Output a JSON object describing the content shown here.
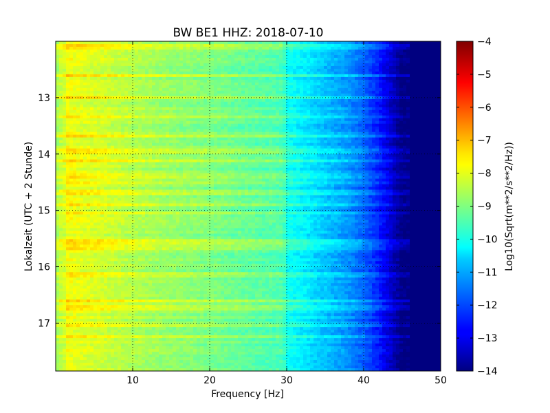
{
  "chart_data": {
    "type": "heatmap",
    "title": "BW BE1 HHZ: 2018-07-10",
    "xlabel": "Frequency [Hz]",
    "ylabel": "Lokalzeit (UTC + 2 Stunde)",
    "xlim": [
      0,
      50
    ],
    "ylim": [
      12.0,
      17.85
    ],
    "x_ticks": [
      10,
      20,
      30,
      40,
      50
    ],
    "y_ticks": [
      13,
      14,
      15,
      16,
      17
    ],
    "grid": true,
    "colormap": "jet",
    "colorbar": {
      "label": "Log10(Sqrt(m**2/s**2/Hz))",
      "range": [
        -14,
        -4
      ],
      "ticks": [
        -4,
        -5,
        -6,
        -7,
        -8,
        -9,
        -10,
        -11,
        -12,
        -13,
        -14
      ]
    },
    "spectrum_profile": {
      "frequency_hz": [
        0,
        1,
        3,
        6,
        10,
        15,
        20,
        25,
        29.5,
        30,
        33,
        34,
        36,
        38,
        40,
        42,
        43,
        44,
        45,
        46,
        50
      ],
      "level": [
        -8.3,
        -7.8,
        -8.0,
        -8.2,
        -8.5,
        -8.8,
        -9.0,
        -9.3,
        -9.5,
        -10.1,
        -10.5,
        -10.7,
        -11.0,
        -11.3,
        -11.8,
        -12.5,
        -13.0,
        -13.5,
        -14,
        -14,
        -14
      ]
    },
    "energetic_times_hours": [
      12.1,
      12.6,
      13.0,
      13.35,
      13.68,
      13.95,
      14.12,
      14.4,
      14.52,
      14.68,
      14.9,
      15.05,
      15.55,
      15.65,
      16.15,
      16.6,
      16.72,
      17.05,
      17.25
    ],
    "colors": {
      "grid": "#000000",
      "frame": "#000000",
      "background": "#ffffff"
    }
  }
}
